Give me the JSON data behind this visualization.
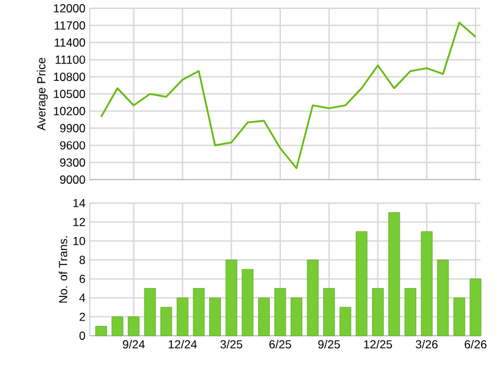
{
  "chart_data": [
    {
      "type": "line",
      "ylabel": "Average Price",
      "categories": [
        null,
        null,
        null,
        null,
        null,
        null,
        null,
        null,
        null,
        null,
        null,
        null,
        null,
        null,
        null,
        null,
        null,
        null,
        null,
        null,
        null,
        null,
        null,
        null
      ],
      "values": [
        10100,
        10600,
        10300,
        10500,
        10450,
        10750,
        10900,
        9600,
        9650,
        10000,
        10030,
        9550,
        9200,
        10300,
        10250,
        10300,
        10600,
        11000,
        10600,
        10900,
        10950,
        10850,
        11750,
        11500
      ],
      "color": "#66bb11",
      "ylim": [
        9000,
        12000
      ],
      "yticks": [
        9000,
        9300,
        9600,
        9900,
        10200,
        10500,
        10800,
        11100,
        11400,
        11700,
        12000
      ],
      "grid": true,
      "tick_labels": "y"
    },
    {
      "type": "bar",
      "ylabel": "No. of Trans.",
      "categories": [
        null,
        null,
        "9/24",
        null,
        null,
        "12/24",
        null,
        null,
        "3/25",
        null,
        null,
        "6/25",
        null,
        null,
        "9/25",
        null,
        null,
        "12/25",
        null,
        null,
        "3/26",
        null,
        null,
        "6/26"
      ],
      "values": [
        1,
        2,
        2,
        5,
        3,
        4,
        5,
        4,
        8,
        7,
        4,
        5,
        4,
        8,
        5,
        3,
        11,
        5,
        13,
        5,
        11,
        8,
        4,
        6
      ],
      "color": "#77cc33",
      "ylim": [
        0,
        14
      ],
      "yticks": [
        0,
        2,
        4,
        6,
        8,
        10,
        12,
        14
      ],
      "grid": true
    }
  ]
}
